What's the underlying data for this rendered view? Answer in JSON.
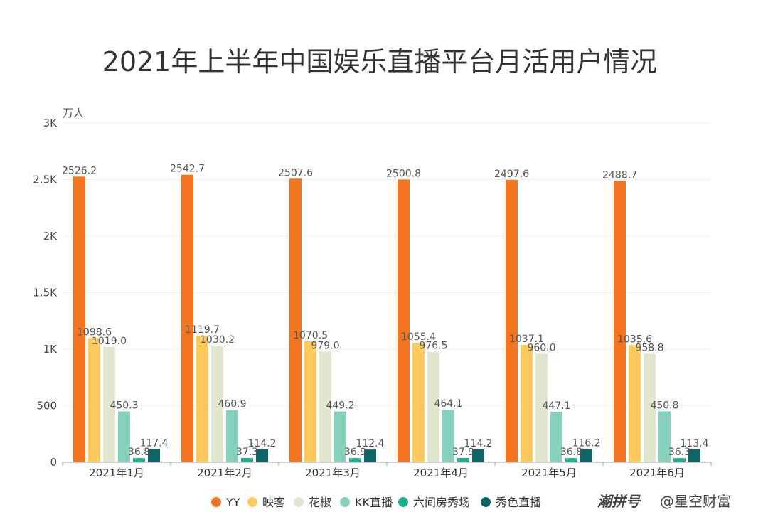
{
  "chart_data": {
    "type": "bar",
    "title": "2021年上半年中国娱乐直播平台月活用户情况",
    "ylabel": "万人",
    "xlabel": "",
    "ylim": [
      0,
      3000
    ],
    "yticks": [
      0,
      500,
      1000,
      1500,
      2000,
      2500,
      3000
    ],
    "ytick_labels": [
      "0",
      "500",
      "1K",
      "1.5K",
      "2K",
      "2.5K",
      "3K"
    ],
    "categories": [
      "2021年1月",
      "2021年2月",
      "2021年3月",
      "2021年4月",
      "2021年5月",
      "2021年6月"
    ],
    "series": [
      {
        "name": "YY",
        "color": "#f47520",
        "values": [
          2526.2,
          2542.7,
          2507.6,
          2500.8,
          2497.6,
          2488.7
        ]
      },
      {
        "name": "映客",
        "color": "#fccb5b",
        "values": [
          1098.6,
          1119.7,
          1070.5,
          1055.4,
          1037.1,
          1035.6
        ]
      },
      {
        "name": "花椒",
        "color": "#e1e7cf",
        "values": [
          1019.0,
          1030.2,
          979.0,
          976.5,
          960.0,
          958.8
        ]
      },
      {
        "name": "KK直播",
        "color": "#86d1bb",
        "values": [
          450.3,
          460.9,
          449.2,
          464.1,
          447.1,
          450.8
        ]
      },
      {
        "name": "六间房秀场",
        "color": "#1fae8f",
        "values": [
          36.8,
          37.3,
          36.9,
          37.9,
          36.8,
          36.3
        ]
      },
      {
        "name": "秀色直播",
        "color": "#0f6467",
        "values": [
          117.4,
          114.2,
          112.4,
          114.2,
          116.2,
          113.4
        ]
      }
    ],
    "grid": true,
    "legend_position": "bottom"
  },
  "watermark": {
    "brand": "潮拼号",
    "author": "@星空财富"
  }
}
